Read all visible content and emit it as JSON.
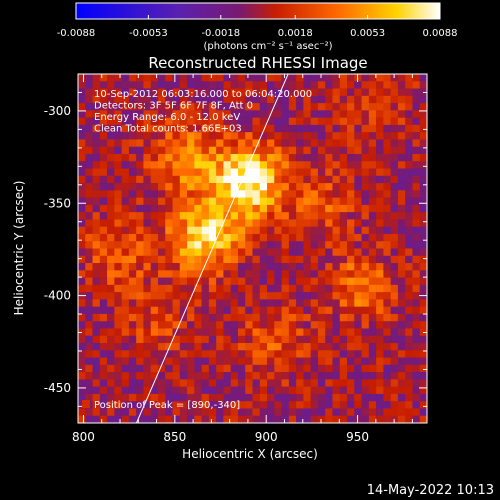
{
  "colorbar": {
    "min_label": "-0.0088",
    "tick_labels": [
      "-0.0088",
      "-0.0053",
      "-0.0018",
      "0.0018",
      "0.0053",
      "0.0088"
    ],
    "range": [
      -0.0088,
      0.0088
    ],
    "unit_label": "(photons cm⁻² s⁻¹ asec⁻²)"
  },
  "chart_data": {
    "type": "heatmap",
    "title": "Reconstructed RHESSI Image",
    "xlabel": "Heliocentric X (arcsec)",
    "ylabel": "Heliocentric Y (arcsec)",
    "xlim": [
      797,
      988
    ],
    "ylim": [
      -469,
      -280
    ],
    "x_ticks": [
      800,
      850,
      900,
      950
    ],
    "y_ticks": [
      -300,
      -350,
      -400,
      -450
    ],
    "grid": false,
    "colormap": "blue-purple-red-orange-yellow-white",
    "info_lines": [
      "10-Sep-2012 06:03:16.000 to 06:04:20.000",
      "Detectors: 3F 5F 6F 7F 8F, Att 0",
      "Energy Range: 6.0 - 12.0 keV",
      "Clean    Total counts: 1.66E+03"
    ],
    "peak_label": "Position of Peak = [890,-340]",
    "peak": [
      890,
      -340
    ],
    "sources": [
      {
        "x": 890,
        "y": -338,
        "amplitude": 0.0088
      },
      {
        "x": 866,
        "y": -368,
        "amplitude": 0.0072
      },
      {
        "x": 855,
        "y": -325,
        "amplitude": 0.0045
      },
      {
        "x": 818,
        "y": -378,
        "amplitude": 0.0032
      },
      {
        "x": 952,
        "y": -395,
        "amplitude": 0.0038
      },
      {
        "x": 930,
        "y": -350,
        "amplitude": 0.0028
      },
      {
        "x": 905,
        "y": -425,
        "amplitude": 0.003
      },
      {
        "x": 840,
        "y": -415,
        "amplitude": 0.0022
      },
      {
        "x": 960,
        "y": -300,
        "amplitude": 0.002
      }
    ],
    "limb_line": [
      [
        829,
        -469
      ],
      [
        912,
        -280
      ]
    ]
  },
  "footer": {
    "date": "14-May-2022 10:13"
  }
}
